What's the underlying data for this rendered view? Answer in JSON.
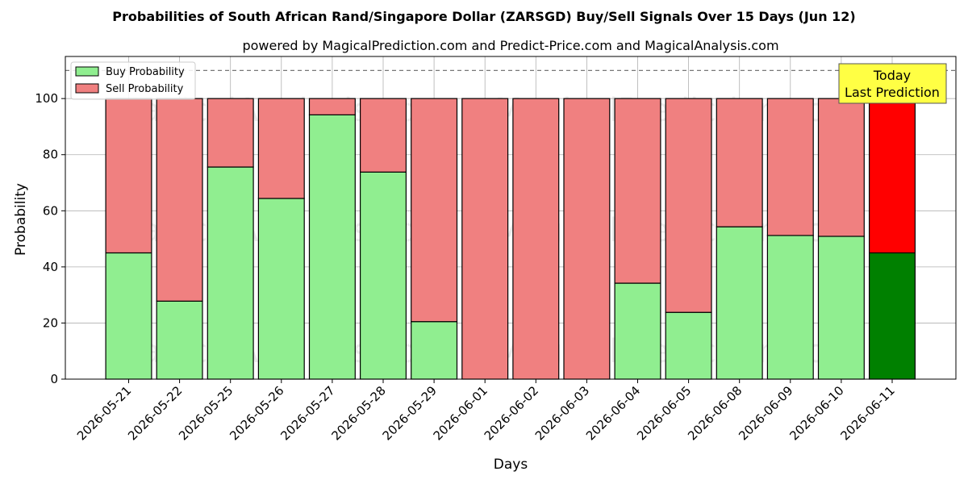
{
  "chart_data": {
    "type": "bar",
    "stacked": true,
    "title": "Probabilities of South African Rand/Singapore Dollar (ZARSGD) Buy/Sell Signals Over 15 Days (Jun 12)",
    "subtitle": "powered by MagicalPrediction.com and Predict-Price.com and MagicalAnalysis.com",
    "xlabel": "Days",
    "ylabel": "Probability",
    "ylim": [
      0,
      115
    ],
    "yticks": [
      0,
      20,
      40,
      60,
      80,
      100
    ],
    "reference_line": 110,
    "grid": true,
    "legend_position": "upper-left",
    "categories": [
      "2026-05-21",
      "2026-05-22",
      "2026-05-25",
      "2026-05-26",
      "2026-05-27",
      "2026-05-28",
      "2026-05-29",
      "2026-06-01",
      "2026-06-02",
      "2026-06-03",
      "2026-06-04",
      "2026-06-05",
      "2026-06-08",
      "2026-06-09",
      "2026-06-10",
      "2026-06-11"
    ],
    "series": [
      {
        "name": "Buy Probability",
        "color": "#90ee90",
        "today_color": "#008000",
        "values": [
          45,
          27.8,
          75.6,
          64.4,
          94.2,
          73.8,
          20.5,
          0,
          0,
          0,
          34.2,
          23.8,
          54.3,
          51.2,
          50.9,
          45
        ]
      },
      {
        "name": "Sell Probability",
        "color": "#f08080",
        "today_color": "#ff0000",
        "values": [
          55,
          72.2,
          24.4,
          35.6,
          5.8,
          26.2,
          79.5,
          100,
          100,
          100,
          65.8,
          76.2,
          45.7,
          48.8,
          49.1,
          55
        ]
      }
    ],
    "annotation": {
      "line1": "Today",
      "line2": "Last Prediction",
      "color": "#ffff44"
    },
    "watermarks": [
      "MagicalAnalysis.com",
      "MagicalPrediction.com"
    ]
  }
}
